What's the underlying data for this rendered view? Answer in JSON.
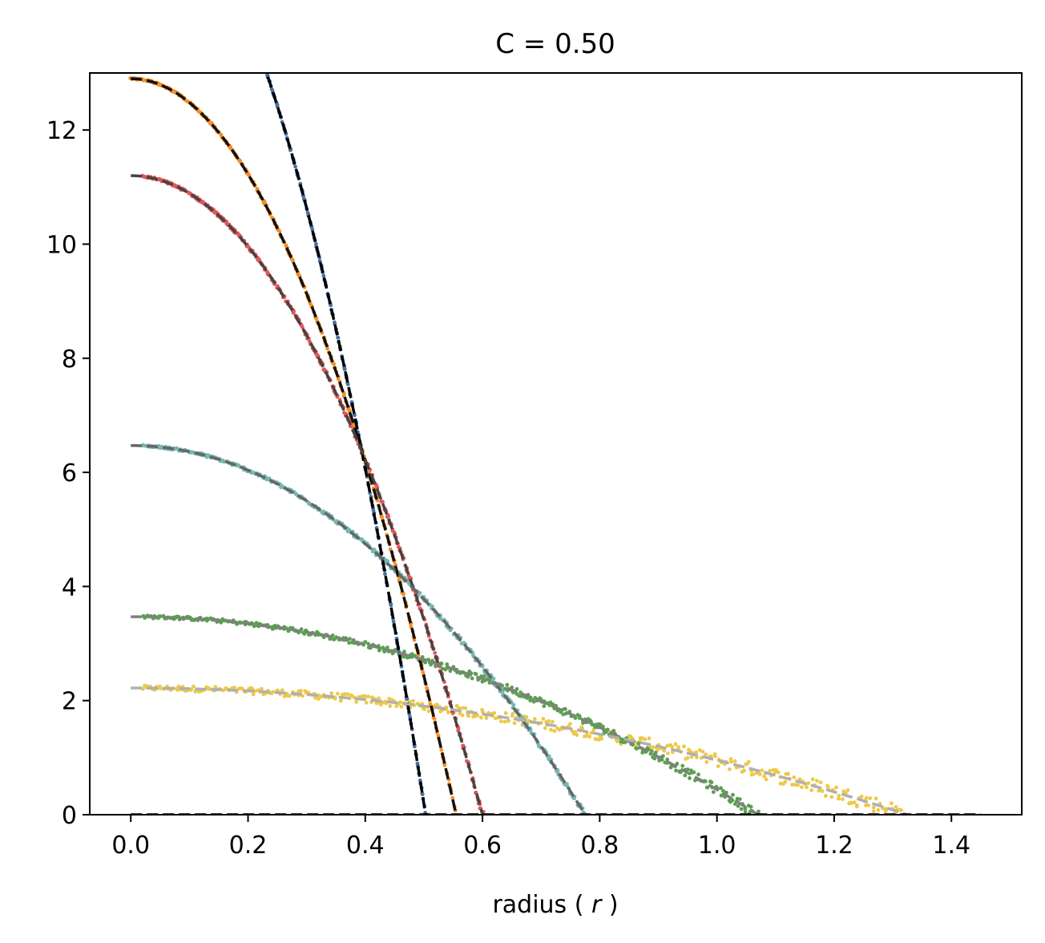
{
  "chart_data": {
    "type": "scatter",
    "title": "C = 0.50",
    "xlabel_prefix": "radius ( ",
    "xlabel_var": "r",
    "xlabel_suffix": " )",
    "ylabel": "",
    "xlim": [
      -0.07,
      1.52
    ],
    "ylim": [
      0,
      13
    ],
    "x_ticks": [
      0.0,
      0.2,
      0.4,
      0.6,
      0.8,
      1.0,
      1.2,
      1.4
    ],
    "y_ticks": [
      0,
      2,
      4,
      6,
      8,
      10,
      12
    ],
    "grid": false,
    "legend": "none",
    "baseline_end_x": 1.45,
    "series": [
      {
        "color": "#4a6fa0",
        "fit_color": "#000000",
        "fit_dash": "dashed",
        "a": 16.5,
        "r0": 0.503,
        "x_start": 0.02,
        "noise": 0.02
      },
      {
        "color": "#f28e2b",
        "fit_color": "#111111",
        "fit_dash": "dashed",
        "a": 12.9,
        "r0": 0.555,
        "x_start": 0.0,
        "noise": 0.03
      },
      {
        "color": "#e15759",
        "fit_color": "#444444",
        "fit_dash": "dashed",
        "a": 11.2,
        "r0": 0.6,
        "x_start": 0.02,
        "noise": 0.04
      },
      {
        "color": "#76b7b2",
        "fit_color": "#666666",
        "fit_dash": "dashed",
        "a": 6.47,
        "r0": 0.775,
        "x_start": 0.02,
        "noise": 0.04
      },
      {
        "color": "#59a14f",
        "fit_color": "#808080",
        "fit_dash": "dashed",
        "a": 3.47,
        "r0": 1.07,
        "x_start": 0.02,
        "noise": 0.06
      },
      {
        "color": "#edc948",
        "fit_color": "#b0b0b0",
        "fit_dash": "dashed",
        "a": 2.22,
        "r0": 1.325,
        "x_start": 0.02,
        "noise": 0.1
      }
    ]
  }
}
